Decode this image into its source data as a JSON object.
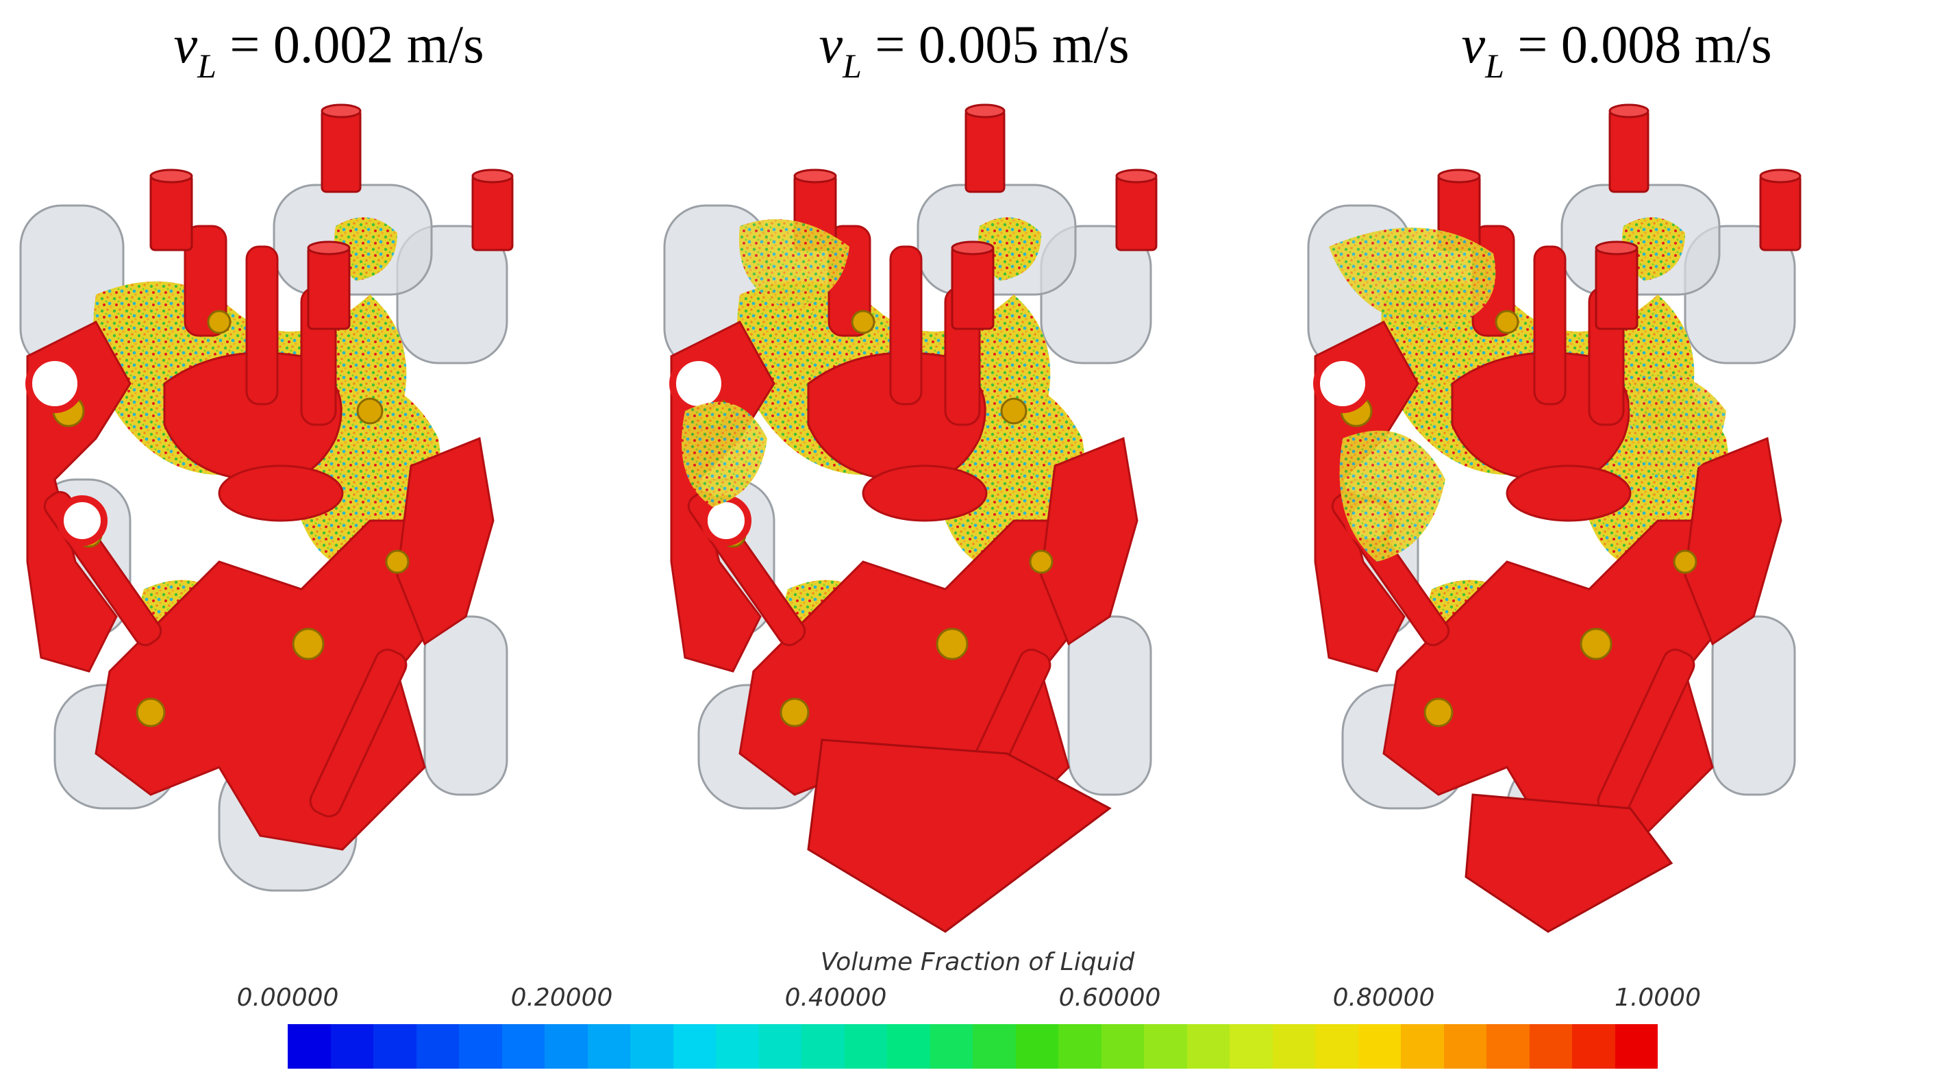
{
  "panels": [
    {
      "v": "v",
      "sub": "L",
      "rest": " = 0.002 m/s"
    },
    {
      "v": "v",
      "sub": "L",
      "rest": " = 0.005 m/s"
    },
    {
      "v": "v",
      "sub": "L",
      "rest": " = 0.008 m/s"
    }
  ],
  "colorbar": {
    "title": "Volume Fraction of Liquid",
    "ticks": [
      "0.00000",
      "0.20000",
      "0.40000",
      "0.60000",
      "0.80000",
      "1.0000"
    ],
    "range": [
      0,
      1
    ],
    "segments": 32
  },
  "colors": {
    "solid": "#e41a1c",
    "shell": "#d7dbe0",
    "edge": "#8a8f96"
  }
}
